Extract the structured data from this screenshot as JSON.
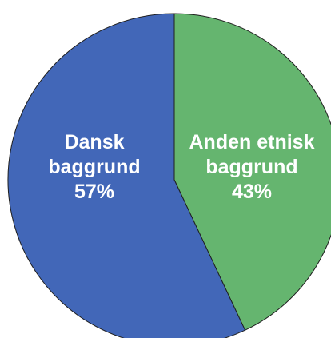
{
  "chart_data": {
    "type": "pie",
    "slices": [
      {
        "label_lines": [
          "Anden etnisk",
          "baggrund"
        ],
        "percent_label": "43%",
        "value": 43,
        "color": "#65b56f"
      },
      {
        "label_lines": [
          "Dansk",
          "baggrund"
        ],
        "percent_label": "57%",
        "value": 57,
        "color": "#4267b8"
      }
    ],
    "start_angle_deg": 0,
    "direction": "clockwise",
    "slice_border_color": "#1f1f1f",
    "legend": "none"
  }
}
